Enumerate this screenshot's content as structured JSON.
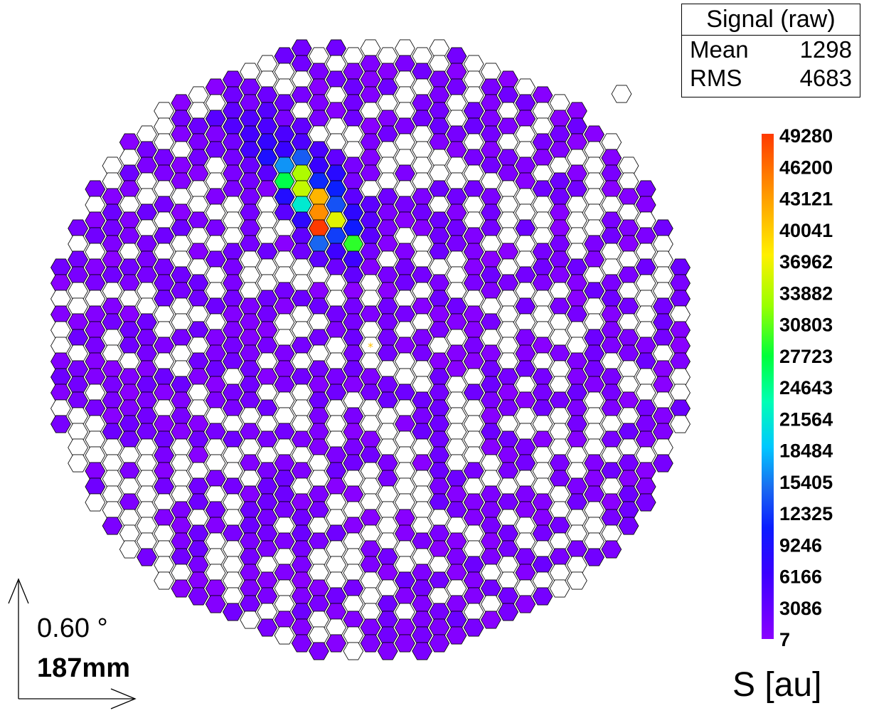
{
  "chart_data": {
    "type": "heatmap",
    "title": "",
    "stats": {
      "title": "Signal (raw)",
      "rows": [
        {
          "label": "Mean",
          "value": "1298"
        },
        {
          "label": "RMS",
          "value": "4683"
        }
      ]
    },
    "color_scale": {
      "min": 7,
      "max": 49280,
      "tick_labels": [
        "49280",
        "46200",
        "43121",
        "40041",
        "36962",
        "33882",
        "30803",
        "27723",
        "24643",
        "21564",
        "18484",
        "15405",
        "12325",
        "9246",
        "6166",
        "3086",
        "7"
      ],
      "label": "S [au]"
    },
    "scale_indicator": {
      "angle": "0.60 °",
      "length": "187mm"
    },
    "layout": {
      "grid_cols": [
        -19,
        19
      ],
      "grid_rows": [
        -19,
        19
      ],
      "max_radius_cells": 18.6
    },
    "cluster": [
      {
        "col": -3,
        "row": -8,
        "value": 49280
      },
      {
        "col": -3,
        "row": -9,
        "value": 44000
      },
      {
        "col": -3,
        "row": -10,
        "value": 41500
      },
      {
        "col": -4,
        "row": -10,
        "value": 34500
      },
      {
        "col": -4,
        "row": -11,
        "value": 33500
      },
      {
        "col": -2,
        "row": -8,
        "value": 36000
      },
      {
        "col": -1,
        "row": -7,
        "value": 29000
      },
      {
        "col": -4,
        "row": -9,
        "value": 21500
      },
      {
        "col": -5,
        "row": -11,
        "value": 27000
      },
      {
        "col": -5,
        "row": -12,
        "value": 16500
      },
      {
        "col": -3,
        "row": -7,
        "value": 14500
      },
      {
        "col": -4,
        "row": -12,
        "value": 14000
      },
      {
        "col": -2,
        "row": -9,
        "value": 13500
      },
      {
        "col": -2,
        "row": -7,
        "value": 12500
      },
      {
        "col": -2,
        "row": -10,
        "value": 11000
      },
      {
        "col": -3,
        "row": -11,
        "value": 11500
      },
      {
        "col": -1,
        "row": -8,
        "value": 10500
      },
      {
        "col": -6,
        "row": -12,
        "value": 9000
      },
      {
        "col": -5,
        "row": -10,
        "value": 8500
      },
      {
        "col": -2,
        "row": -11,
        "value": 8000
      },
      {
        "col": -4,
        "row": -8,
        "value": 7500
      },
      {
        "col": -1,
        "row": -9,
        "value": 7500
      },
      {
        "col": -6,
        "row": -13,
        "value": 7000
      },
      {
        "col": -5,
        "row": -13,
        "value": 6500
      },
      {
        "col": -3,
        "row": -12,
        "value": 6500
      },
      {
        "col": -2,
        "row": -6,
        "value": 6000
      },
      {
        "col": -1,
        "row": -6,
        "value": 6000
      },
      {
        "col": -7,
        "row": -13,
        "value": 5500
      },
      {
        "col": -7,
        "row": -14,
        "value": 5500
      },
      {
        "col": -6,
        "row": -14,
        "value": 5000
      },
      {
        "col": -5,
        "row": -14,
        "value": 5000
      },
      {
        "col": -3,
        "row": -13,
        "value": 5000
      },
      {
        "col": -4,
        "row": -13,
        "value": 4800
      },
      {
        "col": -8,
        "row": -14,
        "value": 4500
      },
      {
        "col": -7,
        "row": -15,
        "value": 4500
      },
      {
        "col": -6,
        "row": -15,
        "value": 4200
      },
      {
        "col": -9,
        "row": -15,
        "value": 4000
      },
      {
        "col": 0,
        "row": -8,
        "value": 4000
      },
      {
        "col": 0,
        "row": -7,
        "value": 3800
      },
      {
        "col": 0,
        "row": -9,
        "value": 3600
      },
      {
        "col": -5,
        "row": -9,
        "value": 3800
      },
      {
        "col": -6,
        "row": -11,
        "value": 3800
      },
      {
        "col": -1,
        "row": -10,
        "value": 3600
      },
      {
        "col": -3,
        "row": -6,
        "value": 3500
      },
      {
        "col": -4,
        "row": -7,
        "value": 3400
      },
      {
        "col": -8,
        "row": -15,
        "value": 3400
      },
      {
        "col": -4,
        "row": -14,
        "value": 3300
      },
      {
        "col": -1,
        "row": -5,
        "value": 3200
      },
      {
        "col": -2,
        "row": -12,
        "value": 3200
      }
    ],
    "empty_fraction": 0.42,
    "background_range": [
      7,
      2500
    ],
    "source_marker": {
      "col": 0,
      "row": 0
    }
  }
}
